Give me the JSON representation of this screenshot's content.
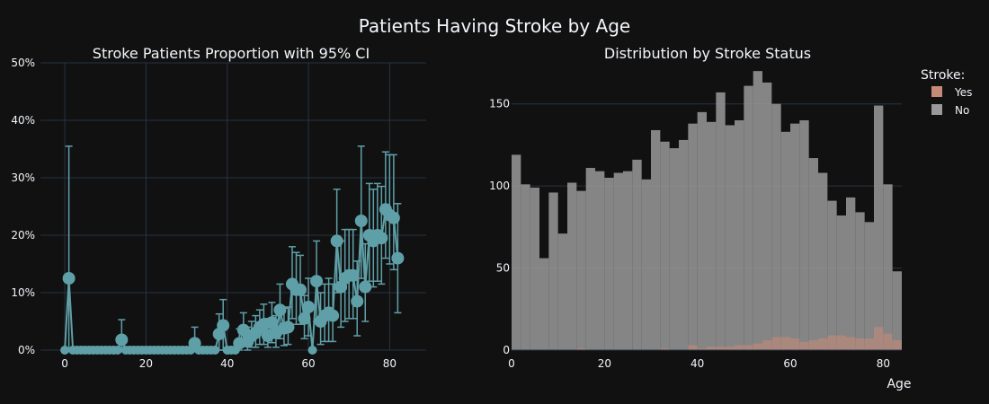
{
  "title": "Patients Having Stroke by Age",
  "colors": {
    "background": "#111111",
    "grid": "#283442",
    "marker": "#5fa0a8",
    "yes_bar": "#c58b78",
    "no_bar": "#9a9a9a",
    "text": "#f2f5fa"
  },
  "chart_data": [
    {
      "type": "scatter",
      "title": "Stroke Patients Proportion with 95% CI",
      "xlabel": "",
      "ylabel": "",
      "xlim": [
        -6,
        89
      ],
      "ylim": [
        0,
        0.5
      ],
      "x_ticks": [
        0,
        20,
        40,
        60,
        80
      ],
      "x_tick_labels": [
        "0",
        "20",
        "40",
        "60",
        "80"
      ],
      "y_ticks": [
        0,
        0.1,
        0.2,
        0.3,
        0.4,
        0.5
      ],
      "y_tick_labels": [
        "0%",
        "10%",
        "20%",
        "30%",
        "40%",
        "50%"
      ],
      "grid": true,
      "x": [
        0,
        1,
        2,
        3,
        4,
        5,
        6,
        7,
        8,
        9,
        10,
        11,
        12,
        13,
        14,
        15,
        16,
        17,
        18,
        19,
        20,
        21,
        22,
        23,
        24,
        25,
        26,
        27,
        28,
        29,
        30,
        31,
        32,
        33,
        34,
        35,
        36,
        37,
        38,
        39,
        40,
        41,
        42,
        43,
        44,
        45,
        46,
        47,
        48,
        49,
        50,
        51,
        52,
        53,
        54,
        55,
        56,
        57,
        58,
        59,
        60,
        61,
        62,
        63,
        64,
        65,
        66,
        67,
        68,
        69,
        70,
        71,
        72,
        73,
        74,
        75,
        76,
        77,
        78,
        79,
        80,
        81,
        82
      ],
      "y": [
        0,
        0.125,
        0,
        0,
        0,
        0,
        0,
        0,
        0,
        0,
        0,
        0,
        0,
        0,
        0.018,
        0,
        0,
        0,
        0,
        0,
        0,
        0,
        0,
        0,
        0,
        0,
        0,
        0,
        0,
        0,
        0,
        0,
        0.012,
        0,
        0,
        0,
        0,
        0,
        0.028,
        0.043,
        0,
        0,
        0,
        0.012,
        0.035,
        0.015,
        0.025,
        0.03,
        0.04,
        0.045,
        0.025,
        0.048,
        0.03,
        0.07,
        0.038,
        0.04,
        0.115,
        0.105,
        0.105,
        0.055,
        0.075,
        0,
        0.12,
        0.05,
        0.06,
        0.065,
        0.06,
        0.19,
        0.11,
        0.125,
        0.13,
        0.13,
        0.085,
        0.225,
        0.11,
        0.2,
        0.19,
        0.2,
        0.195,
        0.245,
        0.235,
        0.23,
        0.16
      ],
      "err_plus": [
        0,
        0.23,
        0,
        0,
        0,
        0,
        0,
        0,
        0,
        0,
        0,
        0,
        0,
        0,
        0.035,
        0,
        0,
        0,
        0,
        0,
        0,
        0,
        0,
        0,
        0,
        0,
        0,
        0,
        0,
        0,
        0,
        0,
        0.028,
        0,
        0,
        0,
        0,
        0,
        0.035,
        0.045,
        0,
        0,
        0,
        0.025,
        0.03,
        0.025,
        0.025,
        0.03,
        0.03,
        0.035,
        0.03,
        0.035,
        0.03,
        0.045,
        0.035,
        0.035,
        0.065,
        0.065,
        0.06,
        0.04,
        0.05,
        0,
        0.07,
        0.05,
        0.055,
        0.06,
        0.055,
        0.09,
        0.08,
        0.085,
        0.08,
        0.08,
        0.07,
        0.13,
        0.075,
        0.09,
        0.09,
        0.09,
        0.09,
        0.1,
        0.105,
        0.11,
        0.095
      ],
      "err_minus": [
        0,
        0.125,
        0,
        0,
        0,
        0,
        0,
        0,
        0,
        0,
        0,
        0,
        0,
        0,
        0.018,
        0,
        0,
        0,
        0,
        0,
        0,
        0,
        0,
        0,
        0,
        0,
        0,
        0,
        0,
        0,
        0,
        0,
        0.012,
        0,
        0,
        0,
        0,
        0,
        0.028,
        0.043,
        0,
        0,
        0,
        0.012,
        0.028,
        0.015,
        0.02,
        0.025,
        0.03,
        0.035,
        0.02,
        0.035,
        0.025,
        0.05,
        0.03,
        0.03,
        0.06,
        0.06,
        0.06,
        0.035,
        0.05,
        0,
        0.07,
        0.04,
        0.045,
        0.05,
        0.045,
        0.09,
        0.07,
        0.075,
        0.075,
        0.075,
        0.06,
        0.1,
        0.06,
        0.08,
        0.08,
        0.08,
        0.08,
        0.085,
        0.085,
        0.09,
        0.095
      ]
    },
    {
      "type": "bar",
      "title": "Distribution by Stroke Status",
      "xlabel": "Age",
      "ylabel": "",
      "barmode": "overlay",
      "xlim": [
        0,
        84
      ],
      "ylim": [
        0,
        175
      ],
      "x_ticks": [
        0,
        20,
        40,
        60,
        80
      ],
      "x_tick_labels": [
        "0",
        "20",
        "40",
        "60",
        "80"
      ],
      "y_ticks": [
        0,
        50,
        100,
        150
      ],
      "y_tick_labels": [
        "0",
        "50",
        "100",
        "150"
      ],
      "grid": true,
      "bin_width": 2,
      "bin_starts": [
        0,
        2,
        4,
        6,
        8,
        10,
        12,
        14,
        16,
        18,
        20,
        22,
        24,
        26,
        28,
        30,
        32,
        34,
        36,
        38,
        40,
        42,
        44,
        46,
        48,
        50,
        52,
        54,
        56,
        58,
        60,
        62,
        64,
        66,
        68,
        70,
        72,
        74,
        76,
        78,
        80,
        82
      ],
      "legend": {
        "title": "Stroke:",
        "position": "top-right"
      },
      "series": [
        {
          "name": "Yes",
          "values": [
            0,
            0,
            0,
            0,
            0,
            0,
            0,
            1,
            0,
            0,
            0,
            0,
            0,
            0,
            0,
            0,
            1,
            0,
            0,
            3,
            1,
            2,
            2,
            2,
            3,
            3,
            4,
            6,
            8,
            8,
            7,
            5,
            6,
            7,
            9,
            9,
            8,
            7,
            7,
            14,
            10,
            6
          ]
        },
        {
          "name": "No",
          "values": [
            119,
            101,
            99,
            56,
            96,
            71,
            102,
            97,
            111,
            109,
            105,
            108,
            109,
            116,
            104,
            134,
            127,
            123,
            128,
            138,
            145,
            139,
            157,
            137,
            140,
            161,
            170,
            163,
            150,
            133,
            138,
            140,
            117,
            108,
            91,
            82,
            93,
            84,
            78,
            149,
            101,
            48
          ]
        }
      ]
    }
  ]
}
